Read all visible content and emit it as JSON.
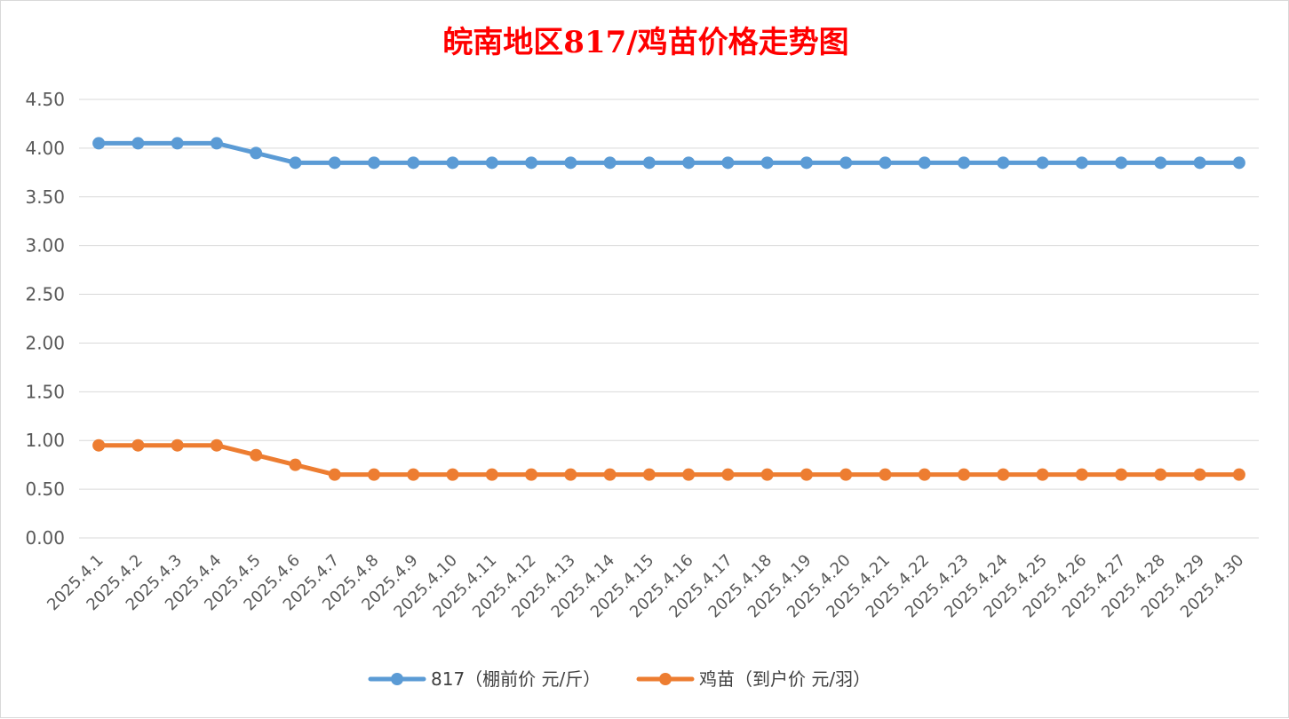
{
  "chart_data": {
    "type": "line",
    "title": "皖南地区817/鸡苗价格走势图",
    "xlabel": "",
    "ylabel": "",
    "ylim": [
      0,
      4.5
    ],
    "yticks": [
      "0.00",
      "0.50",
      "1.00",
      "1.50",
      "2.00",
      "2.50",
      "3.00",
      "3.50",
      "4.00",
      "4.50"
    ],
    "grid": true,
    "legend_position": "bottom",
    "categories": [
      "2025.4.1",
      "2025.4.2",
      "2025.4.3",
      "2025.4.4",
      "2025.4.5",
      "2025.4.6",
      "2025.4.7",
      "2025.4.8",
      "2025.4.9",
      "2025.4.10",
      "2025.4.11",
      "2025.4.12",
      "2025.4.13",
      "2025.4.14",
      "2025.4.15",
      "2025.4.16",
      "2025.4.17",
      "2025.4.18",
      "2025.4.19",
      "2025.4.20",
      "2025.4.21",
      "2025.4.22",
      "2025.4.23",
      "2025.4.24",
      "2025.4.25",
      "2025.4.26",
      "2025.4.27",
      "2025.4.28",
      "2025.4.29",
      "2025.4.30"
    ],
    "series": [
      {
        "name": "817（棚前价 元/斤）",
        "color": "#5b9bd5",
        "values": [
          4.05,
          4.05,
          4.05,
          4.05,
          3.95,
          3.85,
          3.85,
          3.85,
          3.85,
          3.85,
          3.85,
          3.85,
          3.85,
          3.85,
          3.85,
          3.85,
          3.85,
          3.85,
          3.85,
          3.85,
          3.85,
          3.85,
          3.85,
          3.85,
          3.85,
          3.85,
          3.85,
          3.85,
          3.85,
          3.85
        ]
      },
      {
        "name": "鸡苗（到户价 元/羽）",
        "color": "#ed7d31",
        "values": [
          0.95,
          0.95,
          0.95,
          0.95,
          0.85,
          0.75,
          0.65,
          0.65,
          0.65,
          0.65,
          0.65,
          0.65,
          0.65,
          0.65,
          0.65,
          0.65,
          0.65,
          0.65,
          0.65,
          0.65,
          0.65,
          0.65,
          0.65,
          0.65,
          0.65,
          0.65,
          0.65,
          0.65,
          0.65,
          0.65
        ]
      }
    ]
  }
}
